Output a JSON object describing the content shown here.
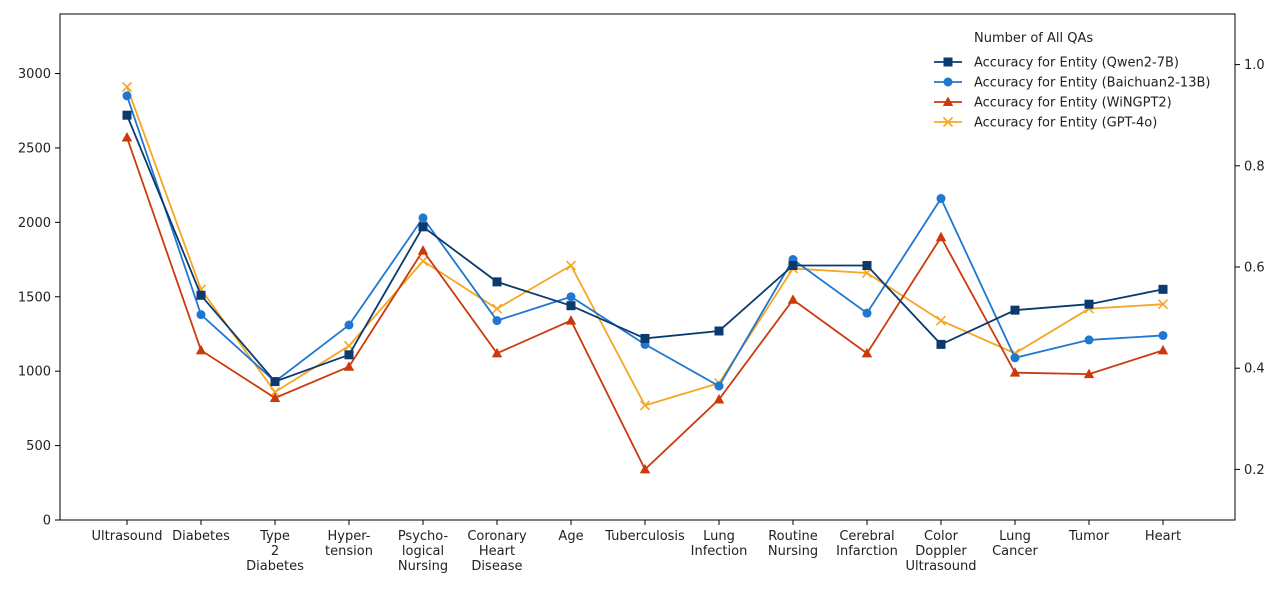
{
  "chart_data": {
    "type": "line",
    "categories": [
      "Ultrasound",
      "Diabetes",
      "Type\n2\nDiabetes",
      "Hyper-\ntension",
      "Psycho-\nlogical\nNursing",
      "Coronary\nHeart\nDisease",
      "Age",
      "Tuberculosis",
      "Lung\nInfection",
      "Routine\nNursing",
      "Cerebral\nInfarction",
      "Color\nDoppler\nUltrasound",
      "Lung\nCancer",
      "Tumor",
      "Heart"
    ],
    "left_axis": {
      "ylim": [
        0,
        3400
      ],
      "ticks": [
        0,
        500,
        1000,
        1500,
        2000,
        2500,
        3000
      ]
    },
    "right_axis": {
      "ylim": [
        0.1,
        1.1
      ],
      "ticks": [
        0.2,
        0.4,
        0.6,
        0.8,
        1.0
      ],
      "tick_labels": [
        "0.2",
        "0.4",
        "0.6",
        "0.8",
        "1.0"
      ]
    },
    "legend": {
      "title": "Number of All QAs",
      "placement": "top-right"
    },
    "series": [
      {
        "name": "Accuracy for Entity (Qwen2-7B)",
        "axis": "left",
        "color": "#0b3a6e",
        "marker": "square",
        "values": [
          2720,
          1510,
          930,
          1110,
          1970,
          1600,
          1440,
          1220,
          1270,
          1710,
          1710,
          1180,
          1410,
          1450,
          1550
        ]
      },
      {
        "name": "Accuracy for Entity (Baichuan2-13B)",
        "axis": "left",
        "color": "#1f77d0",
        "marker": "circle",
        "values": [
          2850,
          1380,
          930,
          1310,
          2030,
          1340,
          1500,
          1180,
          900,
          1750,
          1390,
          2160,
          1090,
          1210,
          1240
        ]
      },
      {
        "name": "Accuracy for Entity (WiNGPT2)",
        "axis": "left",
        "color": "#cc3a0c",
        "marker": "triangle",
        "values": [
          2570,
          1140,
          820,
          1030,
          1810,
          1120,
          1340,
          340,
          810,
          1480,
          1120,
          1900,
          990,
          980,
          1140
        ]
      },
      {
        "name": "Accuracy for Entity (GPT-4o)",
        "axis": "left",
        "color": "#f5a623",
        "marker": "x",
        "values": [
          2910,
          1550,
          860,
          1170,
          1740,
          1420,
          1710,
          770,
          920,
          1690,
          1660,
          1340,
          1120,
          1420,
          1450
        ]
      }
    ]
  }
}
